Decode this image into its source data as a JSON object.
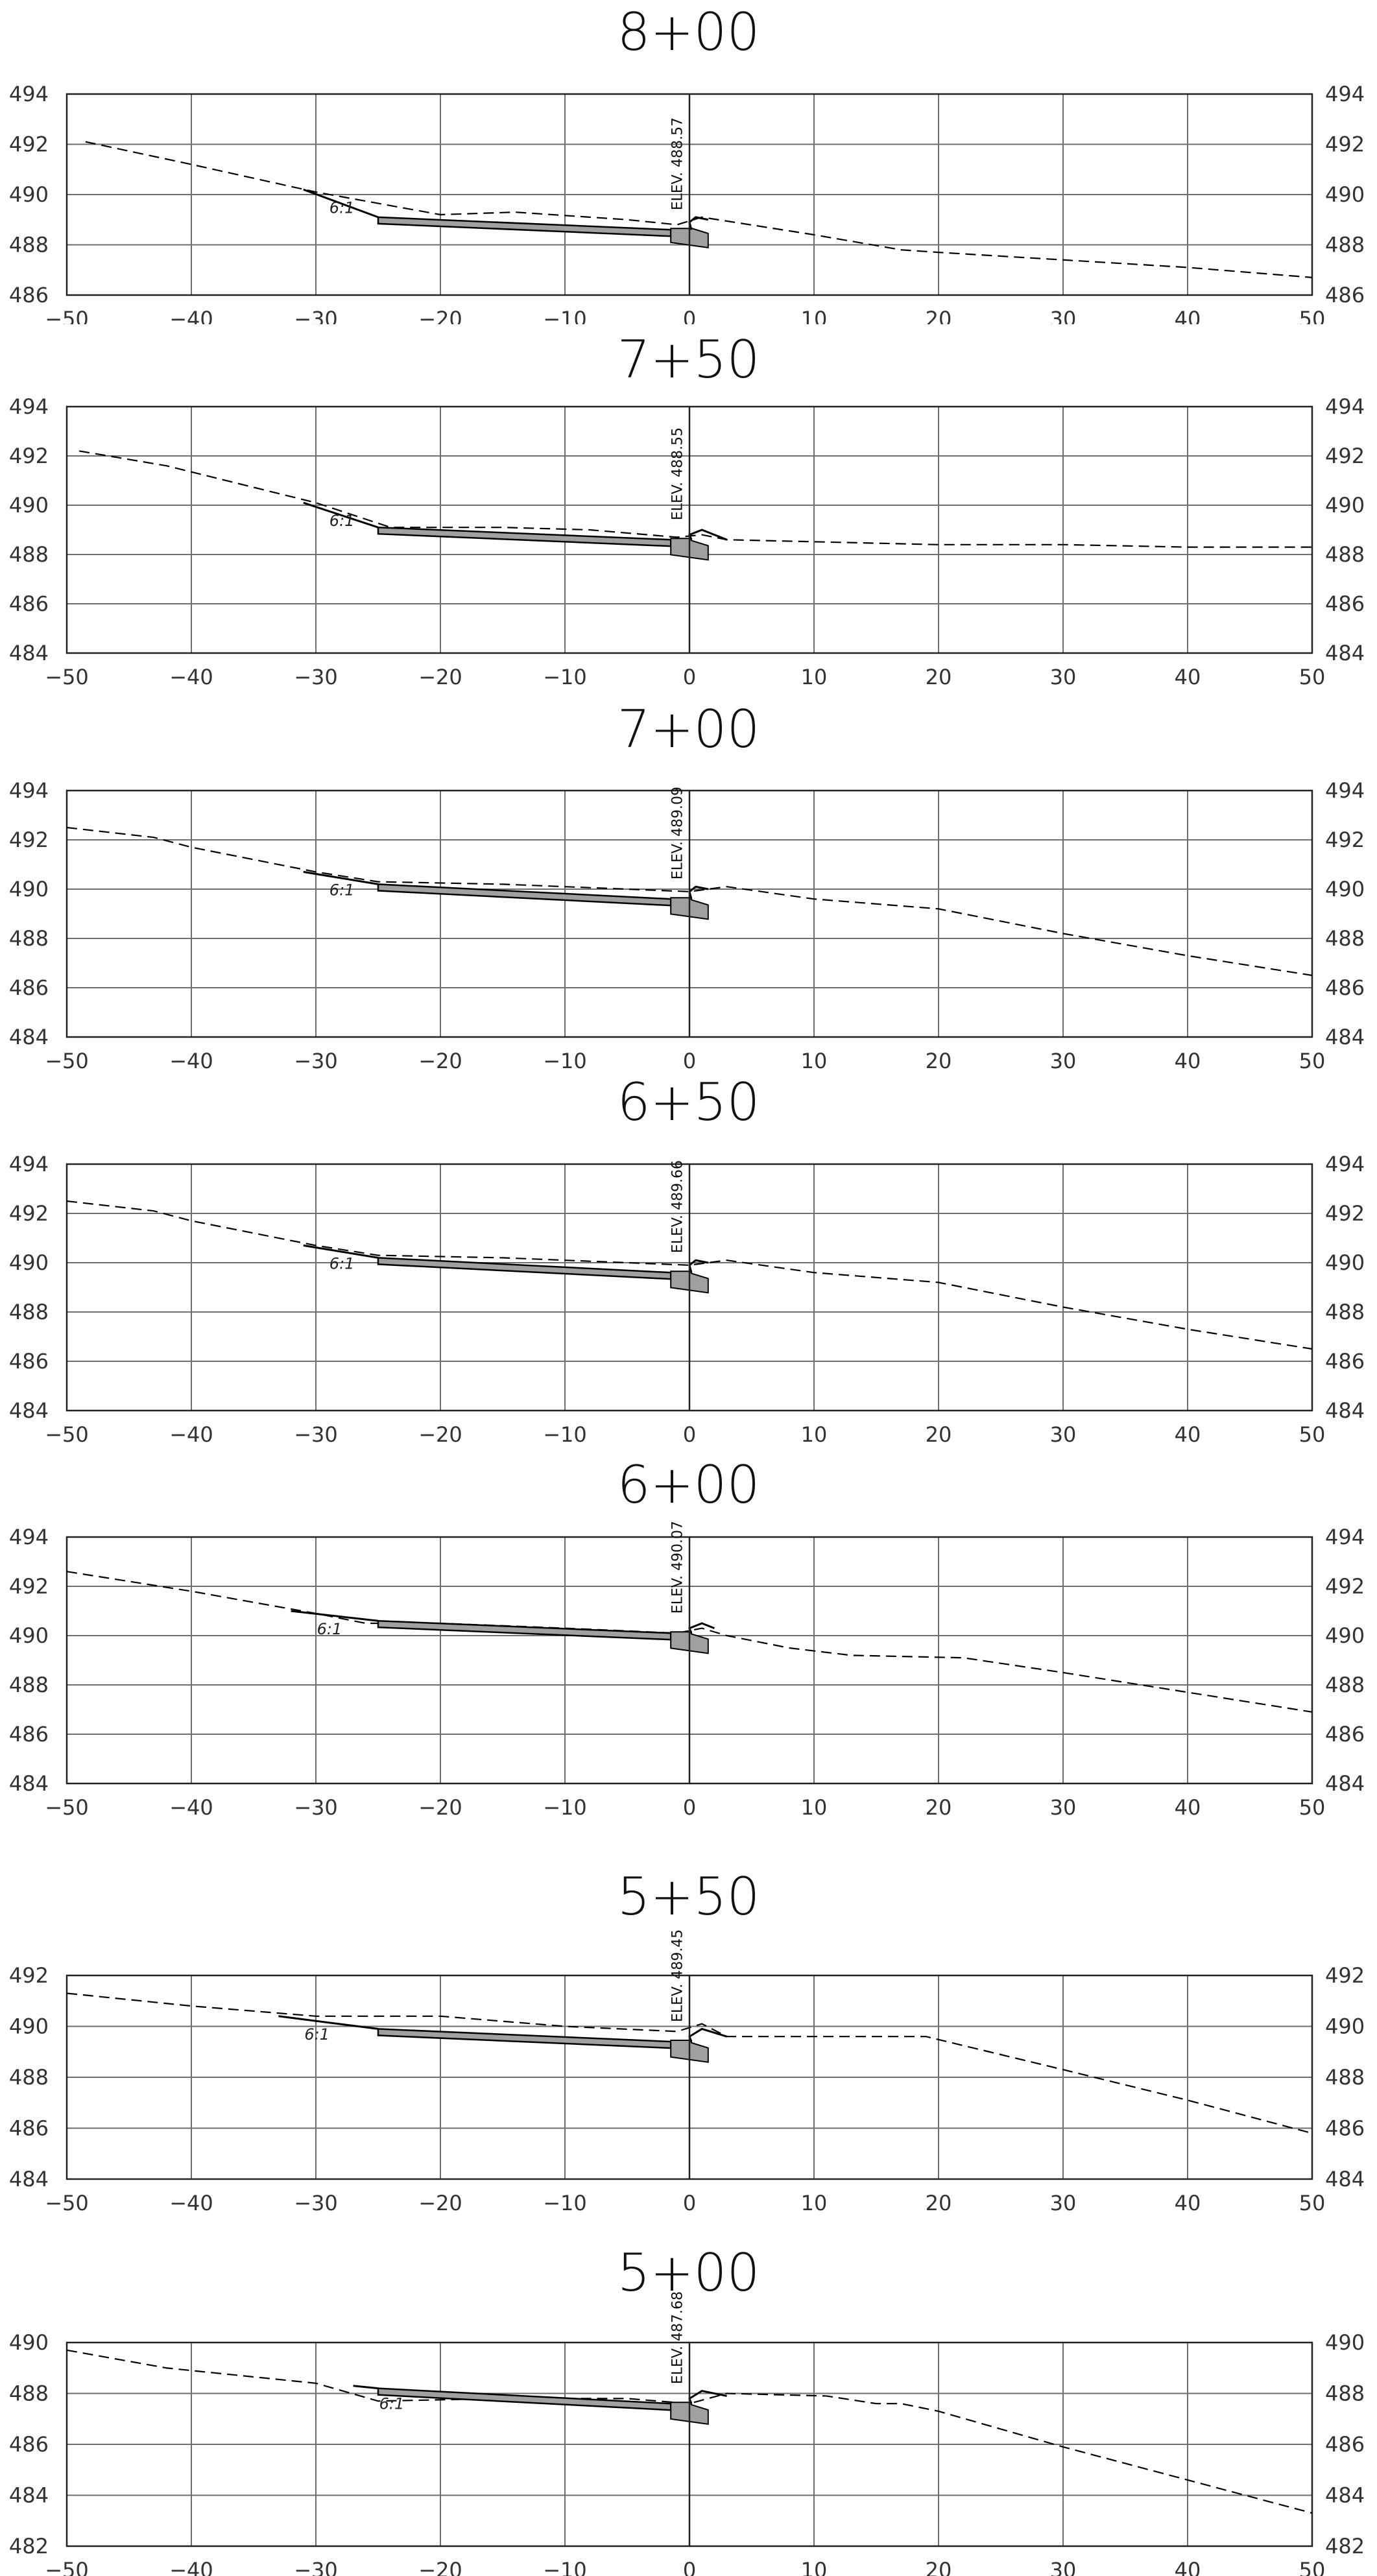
{
  "drawing": {
    "x_ticks": [
      -50,
      -40,
      -30,
      -20,
      -10,
      0,
      10,
      20,
      30,
      40,
      50
    ],
    "slope_label": "6:1",
    "elev_prefix": "ELEV.",
    "line_color": "#000000",
    "grid_color": "#6e6e6e",
    "wall_fill": "#a0a0a0"
  },
  "sections": [
    {
      "station": "8+00",
      "y_ticks": [
        486,
        488,
        490,
        492,
        494
      ],
      "elev": "488.57",
      "existing_ground": [
        [
          -48.5,
          492.1
        ],
        [
          -40,
          491.2
        ],
        [
          -30,
          490.1
        ],
        [
          -20,
          489.2
        ],
        [
          -14,
          489.3
        ],
        [
          -5,
          489.0
        ],
        [
          -1,
          488.8
        ],
        [
          1,
          489.1
        ],
        [
          10,
          488.4
        ],
        [
          17,
          487.8
        ],
        [
          20,
          487.7
        ],
        [
          30,
          487.4
        ],
        [
          40,
          487.1
        ],
        [
          50,
          486.7
        ]
      ],
      "design_top": [
        [
          -31,
          490.2
        ],
        [
          -25,
          489.1
        ],
        [
          -1.5,
          488.6
        ]
      ],
      "curb": [
        [
          0,
          488.9
        ],
        [
          0.5,
          489.1
        ],
        [
          1.5,
          489.0
        ]
      ],
      "design_bottom_y": 488.3
    },
    {
      "station": "7+50",
      "y_ticks": [
        484,
        486,
        488,
        490,
        492,
        494
      ],
      "elev": "488.55",
      "existing_ground": [
        [
          -49,
          492.2
        ],
        [
          -42,
          491.6
        ],
        [
          -30,
          490.1
        ],
        [
          -24,
          489.1
        ],
        [
          -15,
          489.1
        ],
        [
          -8,
          489.0
        ],
        [
          -1,
          488.7
        ],
        [
          1,
          488.8
        ],
        [
          3,
          488.6
        ],
        [
          20,
          488.4
        ],
        [
          30,
          488.4
        ],
        [
          40,
          488.3
        ],
        [
          50,
          488.3
        ]
      ],
      "design_top": [
        [
          -31,
          490.1
        ],
        [
          -25,
          489.1
        ],
        [
          -1.5,
          488.6
        ]
      ],
      "curb": [
        [
          0,
          488.8
        ],
        [
          1,
          489.0
        ],
        [
          3,
          488.6
        ]
      ],
      "design_bottom_y": 488.2
    },
    {
      "station": "7+00",
      "y_ticks": [
        484,
        486,
        488,
        490,
        492,
        494
      ],
      "elev": "489.09",
      "existing_ground": [
        [
          -50,
          492.5
        ],
        [
          -43,
          492.1
        ],
        [
          -40,
          491.7
        ],
        [
          -30,
          490.7
        ],
        [
          -25,
          490.3
        ],
        [
          -15,
          490.2
        ],
        [
          -5,
          490.0
        ],
        [
          0,
          489.9
        ],
        [
          3,
          490.1
        ],
        [
          10,
          489.6
        ],
        [
          20,
          489.2
        ],
        [
          30,
          488.2
        ],
        [
          40,
          487.3
        ],
        [
          50,
          486.5
        ]
      ],
      "design_top": [
        [
          -31,
          490.7
        ],
        [
          -25,
          490.2
        ],
        [
          -1.5,
          489.6
        ]
      ],
      "curb": [
        [
          0,
          489.9
        ],
        [
          0.5,
          490.1
        ],
        [
          1.5,
          490.0
        ]
      ],
      "design_bottom_y": 489.2
    },
    {
      "station": "6+50",
      "y_ticks": [
        484,
        486,
        488,
        490,
        492,
        494
      ],
      "elev": "489.66",
      "existing_ground": [
        [
          -50,
          492.5
        ],
        [
          -43,
          492.1
        ],
        [
          -40,
          491.7
        ],
        [
          -30,
          490.7
        ],
        [
          -25,
          490.3
        ],
        [
          -15,
          490.2
        ],
        [
          -5,
          490.0
        ],
        [
          0,
          489.9
        ],
        [
          3,
          490.1
        ],
        [
          10,
          489.6
        ],
        [
          20,
          489.2
        ],
        [
          30,
          488.2
        ],
        [
          40,
          487.3
        ],
        [
          50,
          486.5
        ]
      ],
      "design_top": [
        [
          -31,
          490.7
        ],
        [
          -25,
          490.2
        ],
        [
          -1.5,
          489.6
        ]
      ],
      "curb": [
        [
          0,
          489.9
        ],
        [
          0.5,
          490.1
        ],
        [
          1.5,
          490.0
        ]
      ],
      "design_bottom_y": 489.2
    },
    {
      "station": "6+00",
      "y_ticks": [
        484,
        486,
        488,
        490,
        492,
        494
      ],
      "elev": "490.07",
      "existing_ground": [
        [
          -50,
          492.6
        ],
        [
          -40,
          491.8
        ],
        [
          -30,
          490.9
        ],
        [
          -26,
          490.5
        ],
        [
          -20,
          490.5
        ],
        [
          -10,
          490.3
        ],
        [
          -1,
          490.1
        ],
        [
          1,
          490.3
        ],
        [
          3,
          490.0
        ],
        [
          8,
          489.5
        ],
        [
          13,
          489.2
        ],
        [
          22,
          489.1
        ],
        [
          30,
          488.5
        ],
        [
          40,
          487.7
        ],
        [
          50,
          486.9
        ]
      ],
      "design_top": [
        [
          -32,
          491.0
        ],
        [
          -25,
          490.6
        ],
        [
          -1.5,
          490.1
        ]
      ],
      "curb": [
        [
          0,
          490.3
        ],
        [
          1,
          490.5
        ],
        [
          2,
          490.3
        ]
      ],
      "design_bottom_y": 489.7
    },
    {
      "station": "5+50",
      "y_ticks": [
        484,
        486,
        488,
        490,
        492
      ],
      "elev": "489.45",
      "existing_ground": [
        [
          -50,
          491.3
        ],
        [
          -40,
          490.8
        ],
        [
          -30,
          490.4
        ],
        [
          -20,
          490.4
        ],
        [
          -10,
          490.0
        ],
        [
          -1,
          489.8
        ],
        [
          1,
          490.1
        ],
        [
          3,
          489.6
        ],
        [
          10,
          489.6
        ],
        [
          19,
          489.6
        ],
        [
          30,
          488.3
        ],
        [
          40,
          487.1
        ],
        [
          50,
          485.8
        ]
      ],
      "design_top": [
        [
          -33,
          490.4
        ],
        [
          -25,
          489.9
        ],
        [
          -1.5,
          489.4
        ]
      ],
      "curb": [
        [
          0,
          489.6
        ],
        [
          1,
          489.9
        ],
        [
          3,
          489.6
        ]
      ],
      "design_bottom_y": 489.0
    },
    {
      "station": "5+00",
      "y_ticks": [
        482,
        484,
        486,
        488,
        490
      ],
      "elev": "487.68",
      "existing_ground": [
        [
          -50,
          489.7
        ],
        [
          -42,
          489.0
        ],
        [
          -30,
          488.4
        ],
        [
          -25,
          487.7
        ],
        [
          -15,
          487.8
        ],
        [
          -5,
          487.8
        ],
        [
          0,
          487.6
        ],
        [
          3,
          488.0
        ],
        [
          11,
          487.9
        ],
        [
          15,
          487.6
        ],
        [
          17,
          487.6
        ],
        [
          20,
          487.3
        ],
        [
          30,
          485.9
        ],
        [
          40,
          484.6
        ],
        [
          50,
          483.3
        ]
      ],
      "design_top": [
        [
          -27,
          488.3
        ],
        [
          -25,
          488.2
        ],
        [
          -1.5,
          487.6
        ]
      ],
      "curb": [
        [
          0,
          487.8
        ],
        [
          1,
          488.1
        ],
        [
          3,
          487.9
        ]
      ],
      "design_bottom_y": 487.2
    }
  ]
}
